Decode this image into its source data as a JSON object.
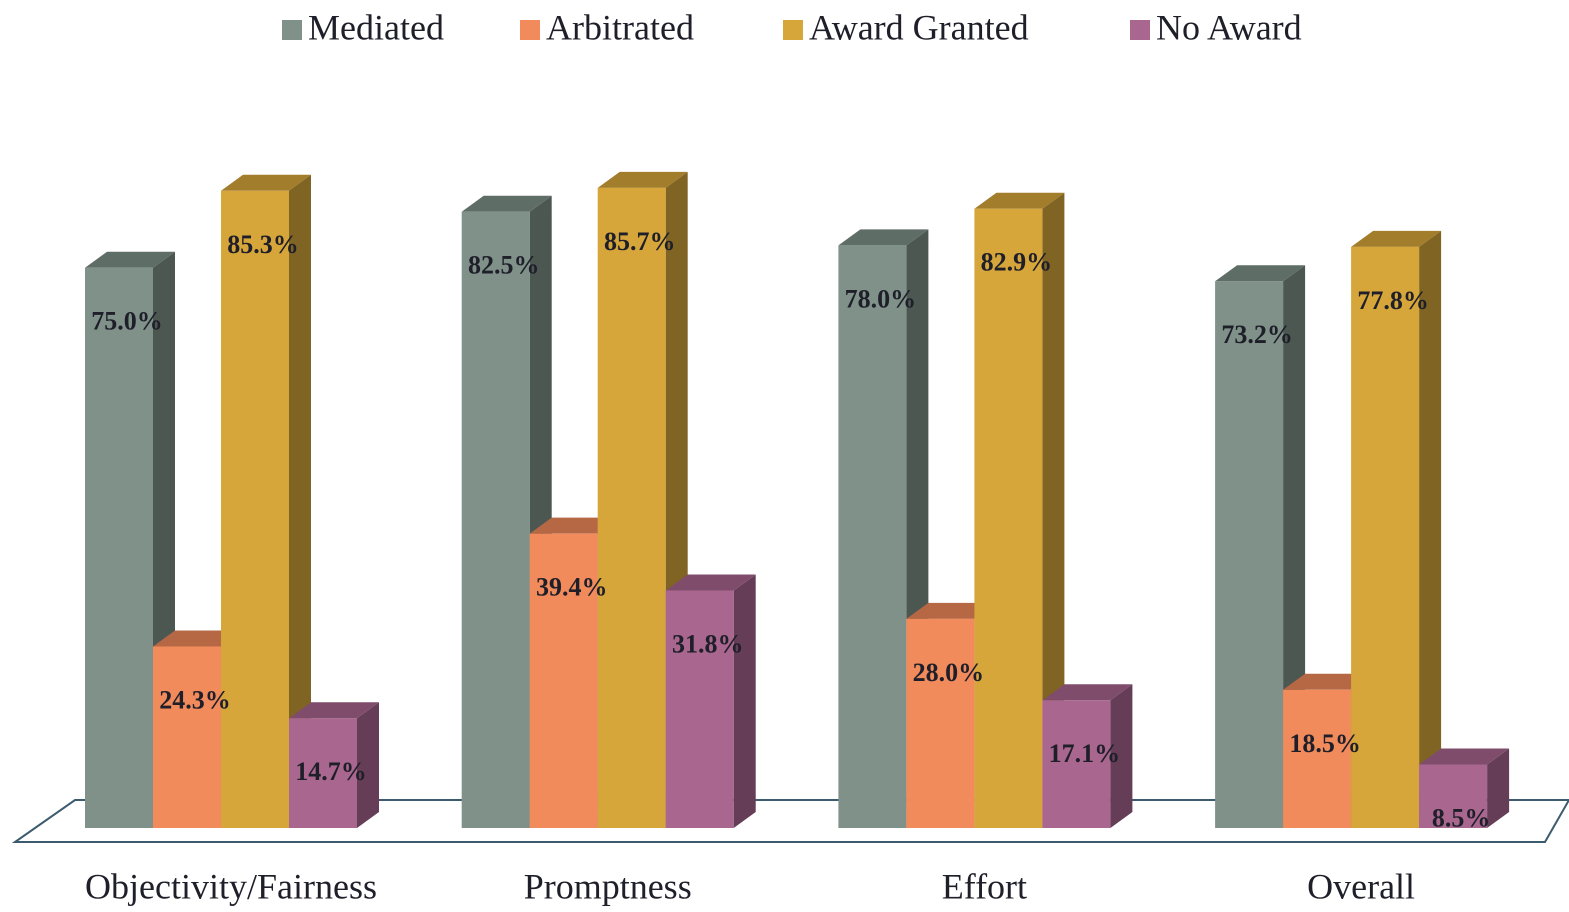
{
  "chart_data": {
    "type": "bar3d",
    "categories": [
      "Objectivity/Fairness",
      "Promptness",
      "Effort",
      "Overall"
    ],
    "series": [
      {
        "name": "Mediated",
        "color": "#7f9189",
        "values": [
          75.0,
          82.5,
          78.0,
          73.2
        ],
        "value_labels": [
          "75.0%",
          "82.5%",
          "78.0%",
          "73.2%"
        ]
      },
      {
        "name": "Arbitrated",
        "color": "#f28b5c",
        "values": [
          24.3,
          39.4,
          28.0,
          18.5
        ],
        "value_labels": [
          "24.3%",
          "39.4%",
          "28.0%",
          "18.5%"
        ]
      },
      {
        "name": "Award Granted",
        "color": "#d6a63a",
        "values": [
          85.3,
          85.7,
          82.9,
          77.8
        ],
        "value_labels": [
          "85.3%",
          "85.7%",
          "82.9%",
          "77.8%"
        ]
      },
      {
        "name": "No Award",
        "color": "#a9668f",
        "values": [
          14.7,
          31.8,
          17.1,
          8.5
        ],
        "value_labels": [
          "14.7%",
          "31.8%",
          "17.1%",
          "8.5%"
        ]
      }
    ],
    "legend": "top"
  }
}
